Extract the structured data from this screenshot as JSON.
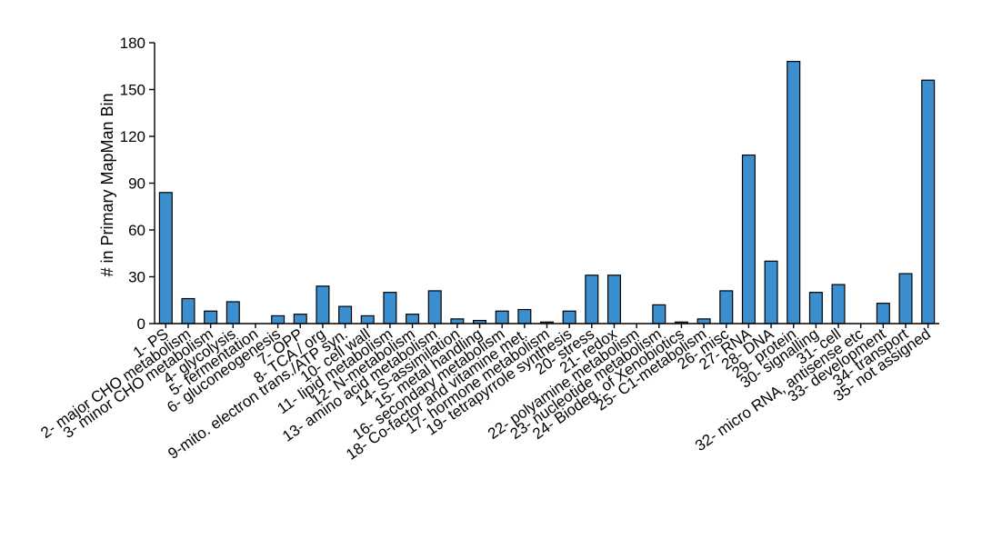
{
  "chart_data": {
    "type": "bar",
    "title": "",
    "xlabel": "",
    "ylabel": "# in Primary MapMan Bin",
    "ylim": [
      0,
      180
    ],
    "yticks": [
      0,
      30,
      60,
      90,
      120,
      150,
      180
    ],
    "grid": false,
    "bar_color": "#3b8fcf",
    "categories": [
      "1- PS",
      "2- major CHO metabolism",
      "3- minor CHO metabolism",
      "4- glycolysis",
      "5- fermentation",
      "6- gluconeogenesis",
      "7- OPP",
      "8- TCA / org",
      "9-mito. electron trans./ATP syn.",
      "10- cell wall",
      "11- lipid metabolism",
      "12- N-metabolism",
      "13- amino acid metabolism",
      "14- S-assimilation",
      "15- metal handling",
      "16- secondary metabolism",
      "18- Co-factor and vitamine met.",
      "17- hormone metabolism",
      "19- tetrapyrrole synthesis",
      "20- stress",
      "21- redox",
      "22- polyamine metabolism",
      "23- nucleotide metabolism",
      "24- Biodeg. of Xenobiotics",
      "25- C1-metabolism",
      "26- misc",
      "27- RNA",
      "28- DNA",
      "29- protein",
      "30- signalling",
      "31- cell",
      "32- micro RNA, antisense etc",
      "33- development",
      "34- transport",
      "35- not assigned"
    ],
    "values": [
      84,
      16,
      8,
      14,
      0,
      5,
      6,
      24,
      11,
      5,
      20,
      6,
      21,
      3,
      2,
      8,
      9,
      1,
      8,
      31,
      31,
      0,
      12,
      1,
      3,
      21,
      108,
      40,
      168,
      20,
      25,
      0,
      13,
      32,
      156
    ]
  }
}
